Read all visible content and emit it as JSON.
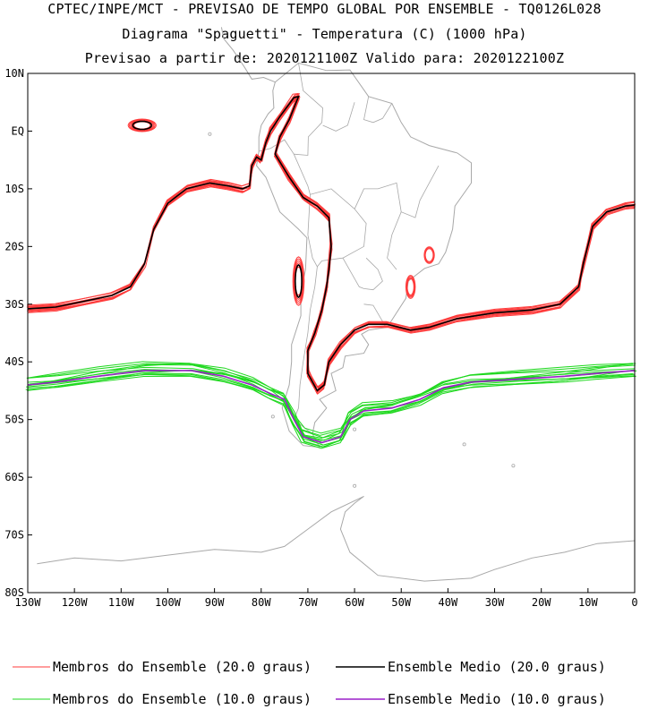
{
  "titles": {
    "line1": "CPTEC/INPE/MCT - PREVISAO DE TEMPO GLOBAL POR ENSEMBLE - TQ0126L028",
    "line2": "Diagrama \"Spaguetti\" - Temperatura (C) (1000 hPa)",
    "line3": "Previsao a partir de: 2020121100Z  Valido para: 2020122100Z"
  },
  "axes": {
    "lat_labels": [
      "10N",
      "EQ",
      "10S",
      "20S",
      "30S",
      "40S",
      "50S",
      "60S",
      "70S",
      "80S"
    ],
    "lon_labels": [
      "130W",
      "120W",
      "110W",
      "100W",
      "90W",
      "80W",
      "70W",
      "60W",
      "50W",
      "40W",
      "30W",
      "20W",
      "10W",
      "0"
    ],
    "lat_range": [
      -80,
      10
    ],
    "lon_range": [
      -130,
      0
    ]
  },
  "legend": {
    "members_20": "Membros do Ensemble (20.0 graus)",
    "mean_20": "Ensemble Medio (20.0 graus)",
    "members_10": "Membros do Ensemble (10.0 graus)",
    "mean_10": "Ensemble Medio (10.0 graus)"
  },
  "colors": {
    "members_20": "#ff3b3b",
    "mean_20": "#000000",
    "members_10": "#1fd81f",
    "mean_10": "#9a1fc8",
    "coastline": "#a8a8a8"
  }
}
